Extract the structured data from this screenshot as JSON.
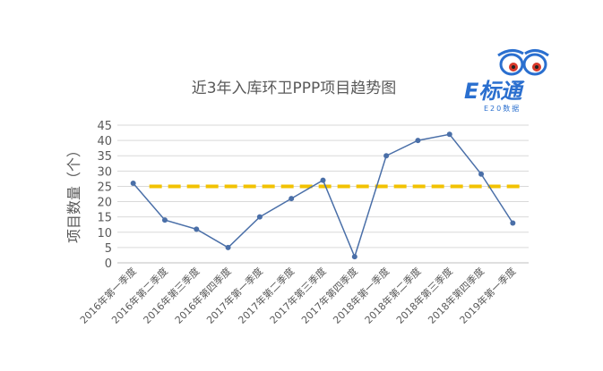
{
  "logo": {
    "brand_text": "E标通",
    "sub_text": "E20数据",
    "primary_color": "#2a6fcf",
    "accent_color": "#d83a2c"
  },
  "chart_data": {
    "type": "line",
    "title": "近3年入库环卫PPP项目趋势图",
    "xlabel": "",
    "ylabel": "项目数量（个）",
    "ylim": [
      0,
      45
    ],
    "yticks": [
      0,
      5,
      10,
      15,
      20,
      25,
      30,
      35,
      40,
      45
    ],
    "grid": true,
    "categories": [
      "2016年第一季度",
      "2016年第二季度",
      "2016年第三季度",
      "2016年第四季度",
      "2017年第一季度",
      "2017年第二季度",
      "2017年第三季度",
      "2017年第四季度",
      "2018年第一季度",
      "2018年第二季度",
      "2018年第三季度",
      "2018年第四季度",
      "2019年第一季度"
    ],
    "series": [
      {
        "values": [
          26,
          14,
          11,
          5,
          15,
          21,
          27,
          2,
          35,
          40,
          42,
          29,
          13
        ],
        "color": "#4a6fa8"
      }
    ],
    "reference_line": {
      "value": 25,
      "color": "#f2c200",
      "style": "dashed"
    }
  }
}
